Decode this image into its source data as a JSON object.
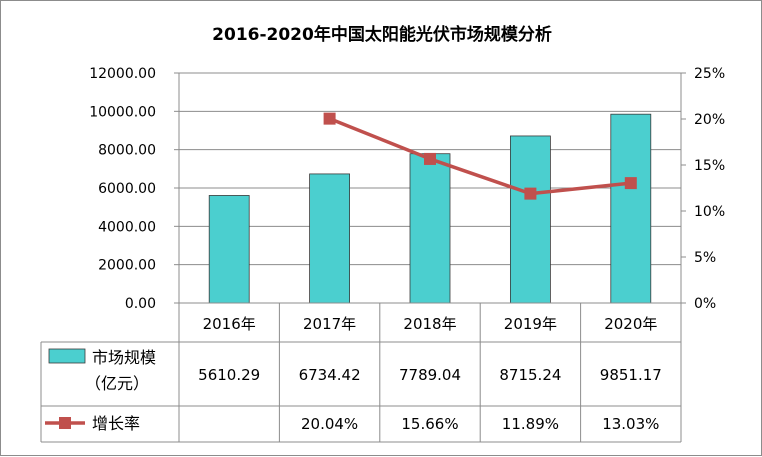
{
  "chart_data": {
    "type": "bar",
    "title": "2016-2020年中国太阳能光伏市场规模分析",
    "categories": [
      "2016年",
      "2017年",
      "2018年",
      "2019年",
      "2020年"
    ],
    "series": [
      {
        "name": "市场规模（亿元）",
        "name_lines": [
          "市场规模",
          "（亿元）"
        ],
        "type": "bar",
        "axis": "left",
        "color": "#4bcfcf",
        "values": [
          5610.29,
          6734.42,
          7789.04,
          8715.24,
          9851.17
        ],
        "labels": [
          "5610.29",
          "6734.42",
          "7789.04",
          "8715.24",
          "9851.17"
        ]
      },
      {
        "name": "增长率",
        "type": "line",
        "axis": "right",
        "color": "#c0504d",
        "values": [
          null,
          20.04,
          15.66,
          11.89,
          13.03
        ],
        "labels": [
          "",
          "20.04%",
          "15.66%",
          "11.89%",
          "13.03%"
        ]
      }
    ],
    "y_left": {
      "ylim": [
        0,
        12000
      ],
      "ticks": [
        "0.00",
        "2000.00",
        "4000.00",
        "6000.00",
        "8000.00",
        "10000.00",
        "12000.00"
      ]
    },
    "y_right": {
      "ylim": [
        0,
        25
      ],
      "ticks": [
        "0%",
        "5%",
        "10%",
        "15%",
        "20%",
        "25%"
      ]
    },
    "grid": true,
    "legend": "data-table"
  }
}
